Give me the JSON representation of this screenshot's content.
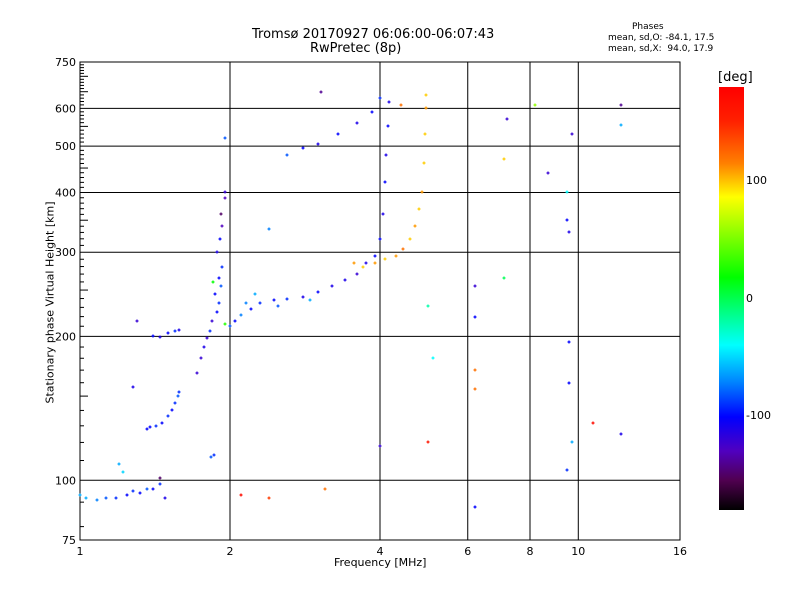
{
  "chart_data": {
    "type": "scatter",
    "title": "Tromsø 20170927 06:06:00-06:07:43",
    "subtitle": "RwPretec (8p)",
    "xlabel": "Frequency [MHz]",
    "ylabel": "Stationary phase Virtual Height [km]",
    "xscale": "log",
    "yscale": "log",
    "xlim": [
      1,
      16
    ],
    "ylim": [
      75,
      750
    ],
    "xticks": [
      1,
      2,
      4,
      6,
      8,
      10,
      16
    ],
    "xtick_labels": [
      "1",
      "2",
      "4",
      "6",
      "8",
      "10",
      "16"
    ],
    "yticks": [
      75,
      100,
      200,
      300,
      400,
      500,
      600,
      750
    ],
    "ytick_labels": [
      "75",
      "100",
      "200",
      "300",
      "400",
      "500",
      "600",
      "750"
    ],
    "grid": true,
    "legend": {
      "title": "Phases",
      "line_o": "mean, sd,O: -84.1, 17.5",
      "line_x": "mean, sd,X:  94.0, 17.9"
    },
    "colorbar": {
      "label": "[deg]",
      "range": [
        -180,
        180
      ],
      "ticks": [
        100,
        0,
        -100
      ],
      "tick_labels": [
        "100",
        "0",
        "-100"
      ]
    },
    "point_fields": [
      "frequency_mhz",
      "height_km",
      "phase_deg"
    ],
    "points": [
      [
        1.0,
        93,
        -60
      ],
      [
        1.03,
        92,
        -60
      ],
      [
        1.08,
        91,
        -70
      ],
      [
        1.13,
        92,
        -80
      ],
      [
        1.18,
        92,
        -90
      ],
      [
        1.24,
        93,
        -100
      ],
      [
        1.28,
        95,
        -90
      ],
      [
        1.32,
        94,
        -100
      ],
      [
        1.36,
        96,
        -80
      ],
      [
        1.4,
        96,
        -100
      ],
      [
        1.45,
        98,
        -90
      ],
      [
        1.48,
        92,
        -110
      ],
      [
        1.45,
        101,
        -150
      ],
      [
        1.2,
        108,
        -60
      ],
      [
        1.22,
        104,
        -50
      ],
      [
        1.36,
        128,
        -100
      ],
      [
        1.38,
        129,
        -100
      ],
      [
        1.42,
        130,
        -90
      ],
      [
        1.46,
        132,
        -100
      ],
      [
        1.5,
        136,
        -90
      ],
      [
        1.53,
        140,
        -100
      ],
      [
        1.55,
        145,
        -90
      ],
      [
        1.57,
        150,
        -80
      ],
      [
        1.58,
        153,
        -90
      ],
      [
        1.28,
        157,
        -110
      ],
      [
        1.4,
        200,
        -100
      ],
      [
        1.45,
        199,
        -110
      ],
      [
        1.5,
        203,
        -100
      ],
      [
        1.55,
        205,
        -90
      ],
      [
        1.58,
        206,
        -110
      ],
      [
        1.3,
        215,
        -120
      ],
      [
        1.72,
        168,
        -120
      ],
      [
        1.75,
        180,
        -120
      ],
      [
        1.77,
        190,
        -110
      ],
      [
        1.8,
        198,
        -120
      ],
      [
        1.82,
        205,
        -90
      ],
      [
        1.84,
        215,
        -120
      ],
      [
        1.88,
        225,
        -100
      ],
      [
        1.9,
        235,
        -90
      ],
      [
        1.87,
        245,
        -100
      ],
      [
        1.92,
        255,
        -80
      ],
      [
        1.9,
        265,
        -100
      ],
      [
        1.93,
        280,
        -90
      ],
      [
        1.88,
        300,
        -110
      ],
      [
        1.91,
        320,
        -100
      ],
      [
        1.93,
        340,
        -130
      ],
      [
        1.92,
        360,
        -150
      ],
      [
        1.95,
        390,
        -130
      ],
      [
        1.95,
        400,
        -120
      ],
      [
        1.83,
        112,
        -80
      ],
      [
        1.86,
        113,
        -90
      ],
      [
        1.95,
        520,
        -80
      ],
      [
        1.85,
        260,
        20
      ],
      [
        1.95,
        212,
        30
      ],
      [
        2.0,
        210,
        -80
      ],
      [
        2.05,
        215,
        -100
      ],
      [
        2.1,
        222,
        -70
      ],
      [
        2.2,
        228,
        -100
      ],
      [
        2.3,
        235,
        -90
      ],
      [
        2.45,
        238,
        -100
      ],
      [
        2.6,
        240,
        -90
      ],
      [
        2.8,
        242,
        -110
      ],
      [
        3.0,
        248,
        -100
      ],
      [
        3.2,
        255,
        -110
      ],
      [
        3.4,
        262,
        -110
      ],
      [
        3.6,
        270,
        -120
      ],
      [
        3.75,
        285,
        -110
      ],
      [
        3.9,
        295,
        -100
      ],
      [
        4.0,
        320,
        -100
      ],
      [
        4.05,
        360,
        -110
      ],
      [
        4.1,
        420,
        -100
      ],
      [
        4.12,
        480,
        -110
      ],
      [
        4.15,
        550,
        -100
      ],
      [
        4.17,
        620,
        -110
      ],
      [
        2.15,
        235,
        -70
      ],
      [
        2.25,
        245,
        -60
      ],
      [
        2.5,
        232,
        -80
      ],
      [
        2.9,
        238,
        -60
      ],
      [
        2.6,
        480,
        -80
      ],
      [
        2.8,
        495,
        -100
      ],
      [
        3.0,
        505,
        -110
      ],
      [
        3.3,
        530,
        -100
      ],
      [
        3.6,
        560,
        -110
      ],
      [
        3.85,
        590,
        -100
      ],
      [
        4.0,
        630,
        -90
      ],
      [
        3.05,
        650,
        -140
      ],
      [
        3.55,
        285,
        110
      ],
      [
        3.7,
        280,
        100
      ],
      [
        3.9,
        285,
        110
      ],
      [
        4.1,
        290,
        100
      ],
      [
        4.3,
        295,
        110
      ],
      [
        4.45,
        305,
        120
      ],
      [
        4.6,
        320,
        100
      ],
      [
        4.7,
        340,
        110
      ],
      [
        4.8,
        370,
        100
      ],
      [
        4.85,
        400,
        110
      ],
      [
        4.9,
        460,
        100
      ],
      [
        4.92,
        530,
        100
      ],
      [
        4.95,
        600,
        110
      ],
      [
        4.95,
        640,
        100
      ],
      [
        4.4,
        610,
        120
      ],
      [
        6.2,
        88,
        -100
      ],
      [
        6.2,
        255,
        -120
      ],
      [
        6.2,
        170,
        120
      ],
      [
        6.2,
        155,
        120
      ],
      [
        7.1,
        265,
        0
      ],
      [
        7.1,
        470,
        100
      ],
      [
        7.2,
        570,
        -120
      ],
      [
        9.6,
        330,
        -110
      ],
      [
        9.5,
        350,
        -100
      ],
      [
        9.5,
        400,
        -40
      ],
      [
        9.7,
        530,
        -120
      ],
      [
        9.6,
        160,
        -100
      ],
      [
        9.6,
        195,
        -100
      ],
      [
        9.7,
        120,
        -60
      ],
      [
        9.5,
        105,
        -90
      ],
      [
        10.7,
        132,
        170
      ],
      [
        12.2,
        125,
        -110
      ],
      [
        12.2,
        555,
        -60
      ],
      [
        12.2,
        610,
        -140
      ],
      [
        8.7,
        440,
        -120
      ],
      [
        8.2,
        610,
        60
      ],
      [
        5.0,
        120,
        160
      ],
      [
        2.1,
        93,
        170
      ],
      [
        2.4,
        92,
        140
      ],
      [
        3.1,
        96,
        120
      ],
      [
        5.1,
        180,
        -40
      ],
      [
        2.4,
        335,
        -70
      ],
      [
        4.0,
        118,
        -120
      ],
      [
        5.0,
        232,
        -20
      ],
      [
        6.2,
        220,
        -100
      ]
    ]
  }
}
